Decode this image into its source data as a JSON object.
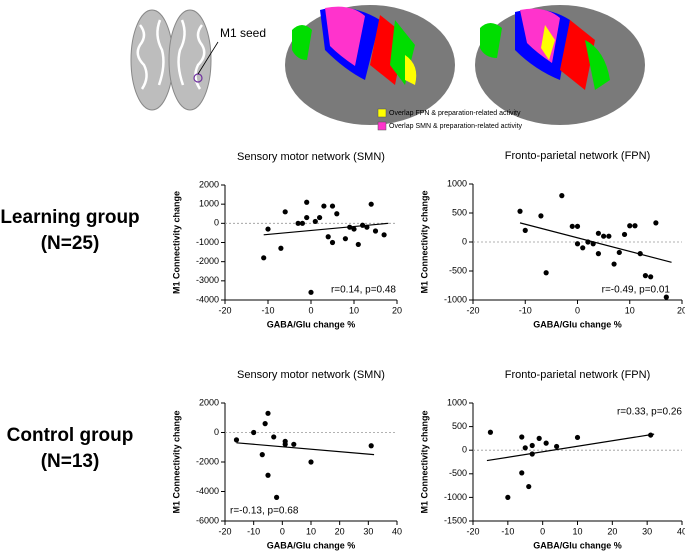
{
  "figure": {
    "seed_label": "M1 seed",
    "legend": [
      {
        "label": "Overlap FPN & preparation-related activity",
        "color": "#ffff00"
      },
      {
        "label": "Overlap SMN & preparation-related activity",
        "color": "#ff33cc"
      }
    ],
    "row_labels": [
      [
        "Learning group",
        "(N=25)"
      ],
      [
        "Control group",
        "(N=13)"
      ]
    ]
  },
  "chart_data": [
    {
      "type": "scatter",
      "title": "Sensory motor network (SMN)",
      "xlabel": "GABA/Glu change %",
      "ylabel": "M1 Connectivity change",
      "annotation": "r=0.14, p=0.48",
      "color": "#000000",
      "x": [
        -11,
        -10,
        -7,
        -6,
        -3,
        -2,
        -1,
        -1,
        0,
        1,
        2,
        3,
        4,
        5,
        5,
        6,
        8,
        9,
        10,
        11,
        12,
        13,
        14,
        15,
        17
      ],
      "values": [
        -1800,
        -300,
        -1300,
        600,
        0,
        0,
        300,
        1100,
        -3600,
        100,
        300,
        900,
        -700,
        900,
        -1000,
        500,
        -800,
        -200,
        -300,
        -1100,
        -100,
        -200,
        1000,
        -400,
        -600
      ],
      "fit": {
        "x": [
          -11,
          18
        ],
        "y": [
          -600,
          0
        ]
      },
      "xlim": [
        -20,
        20
      ],
      "xticks": [
        -20,
        -10,
        0,
        10,
        20
      ],
      "ylim": [
        -4000,
        2000
      ],
      "yticks": [
        -4000,
        -3000,
        -2000,
        -1000,
        0,
        1000,
        2000
      ]
    },
    {
      "type": "scatter",
      "title": "Fronto-parietal network (FPN)",
      "xlabel": "GABA/Glu change %",
      "ylabel": "M1 Connectivity change",
      "annotation": "r=-0.49, p=0.01",
      "color": "#000000",
      "x": [
        -11,
        -10,
        -7,
        -6,
        -3,
        -1,
        0,
        0,
        1,
        2,
        3,
        4,
        4,
        5,
        6,
        7,
        8,
        9,
        10,
        11,
        12,
        13,
        14,
        15,
        17
      ],
      "values": [
        530,
        200,
        450,
        -530,
        800,
        270,
        -30,
        270,
        -100,
        0,
        -30,
        150,
        -200,
        100,
        100,
        -380,
        -180,
        130,
        280,
        280,
        -200,
        -580,
        -600,
        330,
        -950
      ],
      "fit": {
        "x": [
          -11,
          18
        ],
        "y": [
          330,
          -350
        ]
      },
      "xlim": [
        -20,
        20
      ],
      "xticks": [
        -20,
        -10,
        0,
        10,
        20
      ],
      "ylim": [
        -1000,
        1000
      ],
      "yticks": [
        -1000,
        -500,
        0,
        500,
        1000
      ]
    },
    {
      "type": "scatter",
      "title": "Sensory motor network (SMN)",
      "xlabel": "GABA/Glu change %",
      "ylabel": "M1 Connectivity change",
      "annotation": "r=-0.13, p=0.68",
      "color": "#000000",
      "x": [
        -16,
        -10,
        -7,
        -6,
        -5,
        -5,
        -3,
        -2,
        1,
        1,
        4,
        10,
        31
      ],
      "values": [
        -500,
        0,
        -1500,
        600,
        -2900,
        1300,
        -300,
        -4400,
        -800,
        -600,
        -800,
        -2000,
        -900
      ],
      "fit": {
        "x": [
          -16,
          32
        ],
        "y": [
          -700,
          -1500
        ]
      },
      "xlim": [
        -20,
        40
      ],
      "xticks": [
        -20,
        -10,
        0,
        10,
        20,
        30,
        40
      ],
      "ylim": [
        -6000,
        2000
      ],
      "yticks": [
        -6000,
        -4000,
        -2000,
        0,
        2000
      ]
    },
    {
      "type": "scatter",
      "title": "Fronto-parietal network (FPN)",
      "xlabel": "GABA/Glu change %",
      "ylabel": "M1 Connectivity change",
      "annotation": "r=0.33, p=0.26",
      "color": "#000000",
      "x": [
        -15,
        -10,
        -6,
        -6,
        -5,
        -4,
        -3,
        -3,
        -1,
        1,
        4,
        10,
        31
      ],
      "values": [
        380,
        -1000,
        280,
        -480,
        50,
        -770,
        -80,
        100,
        250,
        150,
        80,
        270,
        320
      ],
      "fit": {
        "x": [
          -16,
          32
        ],
        "y": [
          -220,
          340
        ]
      },
      "xlim": [
        -20,
        40
      ],
      "xticks": [
        -20,
        -10,
        0,
        10,
        20,
        30,
        40
      ],
      "ylim": [
        -1500,
        1000
      ],
      "yticks": [
        -1500,
        -1000,
        -500,
        0,
        500,
        1000
      ]
    }
  ]
}
